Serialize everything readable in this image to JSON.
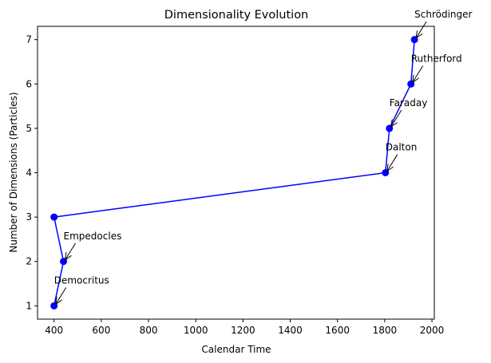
{
  "chart_data": {
    "type": "line",
    "title": "Dimensionality Evolution",
    "xlabel": "Calendar Time",
    "ylabel": "Number of Dimensions (Particles)",
    "xlim": [
      330,
      2010
    ],
    "ylim": [
      0.7,
      7.3
    ],
    "xticks": [
      400,
      600,
      800,
      1000,
      1200,
      1400,
      1600,
      1800,
      2000
    ],
    "yticks": [
      1,
      2,
      3,
      4,
      5,
      6,
      7
    ],
    "grid": false,
    "color": "#0000ff",
    "x": [
      400,
      440,
      400,
      1803,
      1820,
      1911,
      1926
    ],
    "y": [
      1,
      2,
      3,
      4,
      5,
      6,
      7
    ],
    "annotations": [
      {
        "text": "Democritus",
        "x": 400,
        "y": 1,
        "tx": 400,
        "ty": 1.5
      },
      {
        "text": "Empedocles",
        "x": 440,
        "y": 2,
        "tx": 440,
        "ty": 2.5
      },
      {
        "text": "Dalton",
        "x": 1803,
        "y": 4,
        "tx": 1803,
        "ty": 4.5
      },
      {
        "text": "Faraday",
        "x": 1820,
        "y": 5,
        "tx": 1820,
        "ty": 5.5
      },
      {
        "text": "Rutherford",
        "x": 1911,
        "y": 6,
        "tx": 1911,
        "ty": 6.5
      },
      {
        "text": "Schrödinger",
        "x": 1926,
        "y": 7,
        "tx": 1926,
        "ty": 7.5
      }
    ]
  }
}
